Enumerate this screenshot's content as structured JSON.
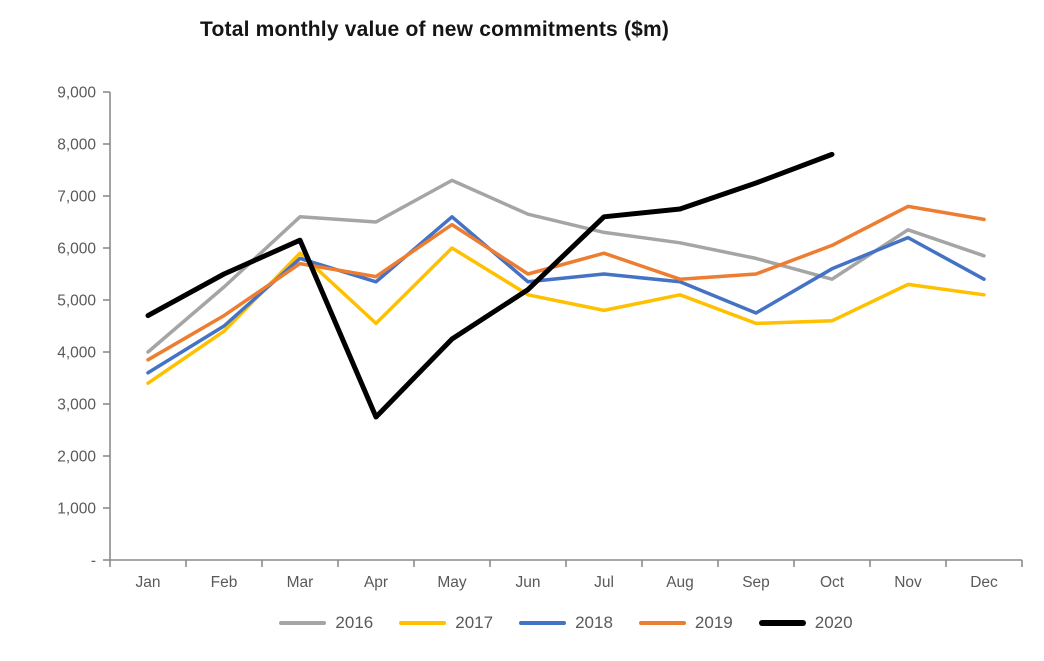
{
  "chart_data": {
    "type": "line",
    "title": "Total monthly value of new commitments ($m)",
    "xlabel": "",
    "ylabel": "",
    "categories": [
      "Jan",
      "Feb",
      "Mar",
      "Apr",
      "May",
      "Jun",
      "Jul",
      "Aug",
      "Sep",
      "Oct",
      "Nov",
      "Dec"
    ],
    "y_axis": {
      "min": 0,
      "max": 9000,
      "tick_step": 1000,
      "tick_labels": [
        "9,000",
        "8,000",
        "7,000",
        "6,000",
        "5,000",
        "4,000",
        "3,000",
        "2,000",
        "1,000",
        "-"
      ],
      "tick_values": [
        9000,
        8000,
        7000,
        6000,
        5000,
        4000,
        3000,
        2000,
        1000,
        0
      ]
    },
    "grid": false,
    "legend_position": "bottom",
    "series": [
      {
        "name": "2016",
        "color": "#A5A5A5",
        "emphasis": false,
        "values": [
          4000,
          5250,
          6600,
          6500,
          7300,
          6650,
          6300,
          6100,
          5800,
          5400,
          6350,
          5850
        ]
      },
      {
        "name": "2017",
        "color": "#FFC000",
        "emphasis": false,
        "values": [
          3400,
          4400,
          5900,
          4550,
          6000,
          5100,
          4800,
          5100,
          4550,
          4600,
          5300,
          5100
        ]
      },
      {
        "name": "2018",
        "color": "#4472C4",
        "emphasis": false,
        "values": [
          3600,
          4500,
          5800,
          5350,
          6600,
          5350,
          5500,
          5350,
          4750,
          5600,
          6200,
          5400
        ]
      },
      {
        "name": "2019",
        "color": "#ED7D31",
        "emphasis": false,
        "values": [
          3850,
          4700,
          5700,
          5450,
          6450,
          5500,
          5900,
          5400,
          5500,
          6050,
          6800,
          6550
        ]
      },
      {
        "name": "2020",
        "color": "#000000",
        "emphasis": true,
        "values": [
          4700,
          5500,
          6150,
          2750,
          4250,
          5200,
          6600,
          6750,
          7250,
          7800
        ]
      }
    ],
    "axis_color": "#8c8c8c",
    "label_color": "#595959"
  }
}
